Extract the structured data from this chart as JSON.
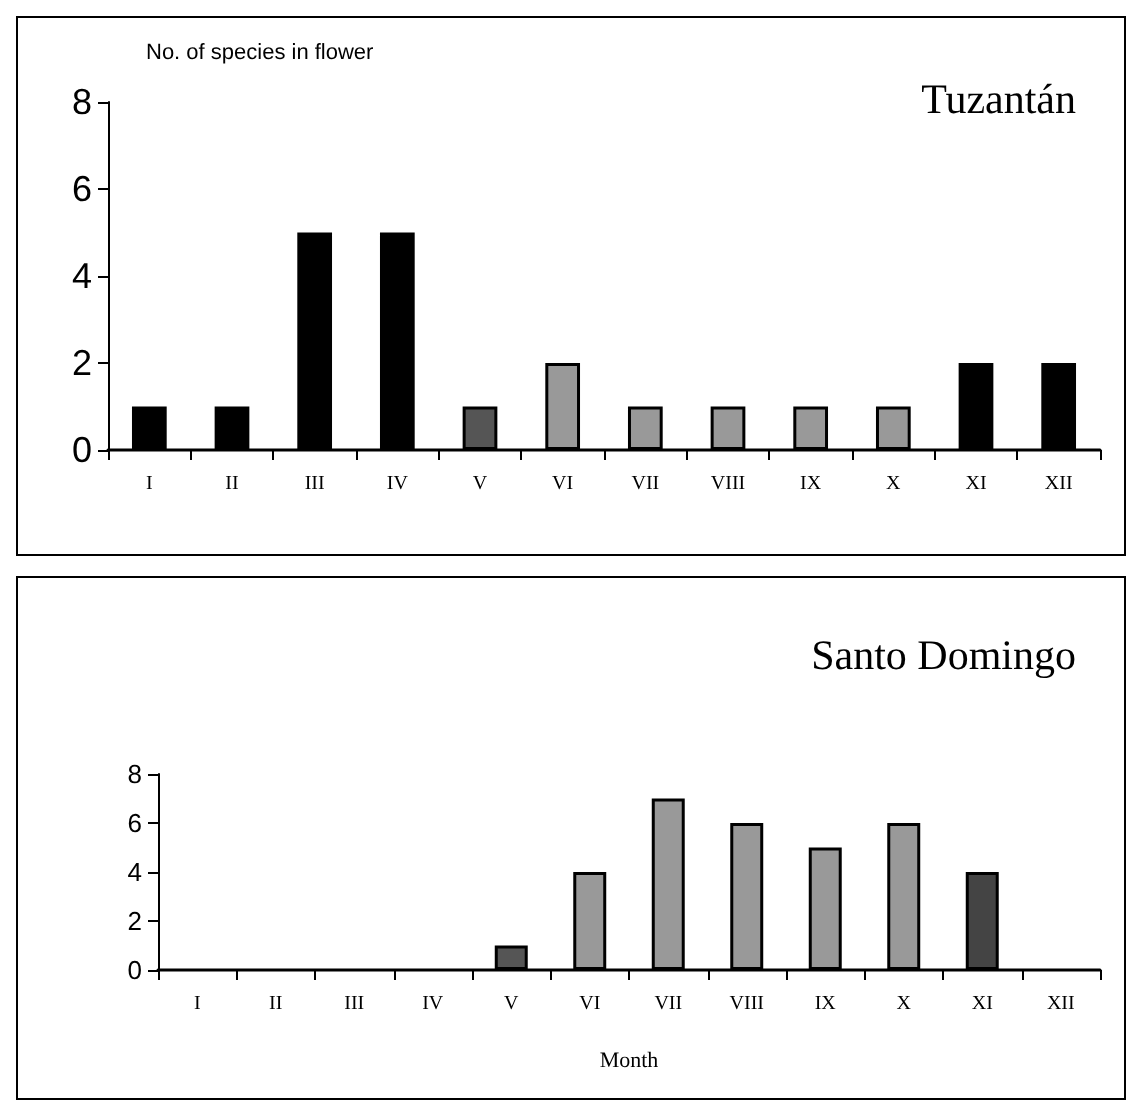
{
  "chart_data": [
    {
      "type": "bar",
      "ylabel": "No. of species in flower",
      "annotations": [
        "Tuzantán"
      ],
      "categories": [
        "I",
        "II",
        "III",
        "IV",
        "V",
        "VI",
        "VII",
        "VIII",
        "IX",
        "X",
        "XI",
        "XII"
      ],
      "values": [
        1,
        1,
        5,
        5,
        1,
        2,
        1,
        1,
        1,
        1,
        2,
        2
      ],
      "colors": [
        "#000000",
        "#000000",
        "#000000",
        "#000000",
        "#555555",
        "#999999",
        "#999999",
        "#999999",
        "#999999",
        "#999999",
        "#000000",
        "#000000"
      ],
      "ylim": [
        0,
        8
      ],
      "yticks": [
        0,
        2,
        4,
        6,
        8
      ]
    },
    {
      "type": "bar",
      "xlabel": "Month",
      "annotations": [
        "Santo Domingo"
      ],
      "categories": [
        "I",
        "II",
        "III",
        "IV",
        "V",
        "VI",
        "VII",
        "VIII",
        "IX",
        "X",
        "XI",
        "XII"
      ],
      "values": [
        0,
        0,
        0,
        0,
        1,
        4,
        7,
        6,
        5,
        6,
        4,
        0
      ],
      "colors": [
        "#999999",
        "#999999",
        "#999999",
        "#999999",
        "#555555",
        "#999999",
        "#999999",
        "#999999",
        "#999999",
        "#999999",
        "#444444",
        "#999999"
      ],
      "ylim": [
        0,
        8
      ],
      "yticks": [
        0,
        2,
        4,
        6,
        8
      ]
    }
  ]
}
